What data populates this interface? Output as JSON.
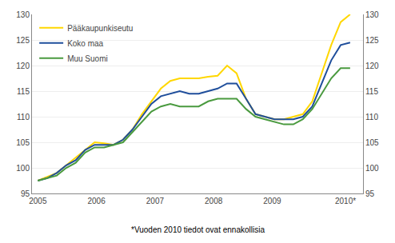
{
  "chart_data": {
    "type": "line",
    "annotations": [
      "*Vuoden 2010 tiedot ovat ennakollisia"
    ],
    "x": [
      2005,
      2005.161515,
      2005.32303,
      2005.484545,
      2005.646061,
      2005.807576,
      2005.969091,
      2006.130606,
      2006.292121,
      2006.453636,
      2006.615152,
      2006.776667,
      2006.938182,
      2007.099697,
      2007.261212,
      2007.422727,
      2007.584242,
      2007.745758,
      2007.907273,
      2008.068788,
      2008.230303,
      2008.391818,
      2008.553333,
      2008.714848,
      2008.876364,
      2009.037879,
      2009.199394,
      2009.360909,
      2009.522424,
      2009.683939,
      2009.845455,
      2010.00697,
      2010.168485,
      2010.33
    ],
    "series": [
      {
        "name": "Pääkaupunkiseutu",
        "color": "#FFD700",
        "values": [
          97.5,
          98.2,
          99.0,
          100.5,
          102.0,
          103.5,
          105.0,
          104.8,
          104.5,
          105.5,
          107.5,
          110.5,
          113.0,
          115.5,
          117.0,
          117.5,
          117.5,
          117.5,
          117.8,
          118.0,
          120.0,
          118.5,
          113.5,
          110.5,
          110.0,
          109.5,
          109.5,
          110.0,
          110.5,
          113.0,
          118.5,
          124.0,
          128.5,
          130.0
        ]
      },
      {
        "name": "Koko maa",
        "color": "#1F4E9B",
        "values": [
          97.5,
          98.0,
          99.0,
          100.5,
          101.5,
          103.5,
          104.5,
          104.5,
          104.5,
          105.5,
          107.5,
          110.0,
          112.5,
          114.0,
          114.5,
          115.0,
          114.5,
          114.5,
          115.0,
          115.5,
          116.5,
          116.5,
          113.5,
          110.5,
          110.0,
          109.5,
          109.5,
          109.5,
          110.0,
          112.0,
          116.5,
          121.0,
          124.0,
          124.5
        ]
      },
      {
        "name": "Muu Suomi",
        "color": "#4A9A3F",
        "values": [
          97.5,
          98.0,
          98.5,
          100.0,
          101.0,
          103.0,
          104.0,
          104.0,
          104.5,
          105.0,
          107.0,
          109.0,
          111.0,
          112.0,
          112.5,
          112.0,
          112.0,
          112.0,
          113.0,
          113.5,
          113.5,
          113.5,
          111.5,
          110.0,
          109.5,
          109.0,
          108.5,
          108.5,
          109.5,
          111.5,
          114.5,
          117.5,
          119.5,
          119.5
        ]
      }
    ],
    "xlim": [
      2004.9,
      2010.55
    ],
    "xticks": [
      2005,
      2006,
      2007,
      2008,
      2009,
      {
        "value": 2010.25,
        "label": "2010*"
      }
    ],
    "ylim": [
      95,
      130
    ],
    "yticks": [
      95,
      100,
      105,
      110,
      115,
      120,
      125,
      130
    ],
    "y2lim": [
      95,
      130
    ],
    "y2ticks": [
      95,
      100,
      105,
      110,
      115,
      120,
      125,
      130
    ],
    "grid": true,
    "legend": "upper left"
  }
}
